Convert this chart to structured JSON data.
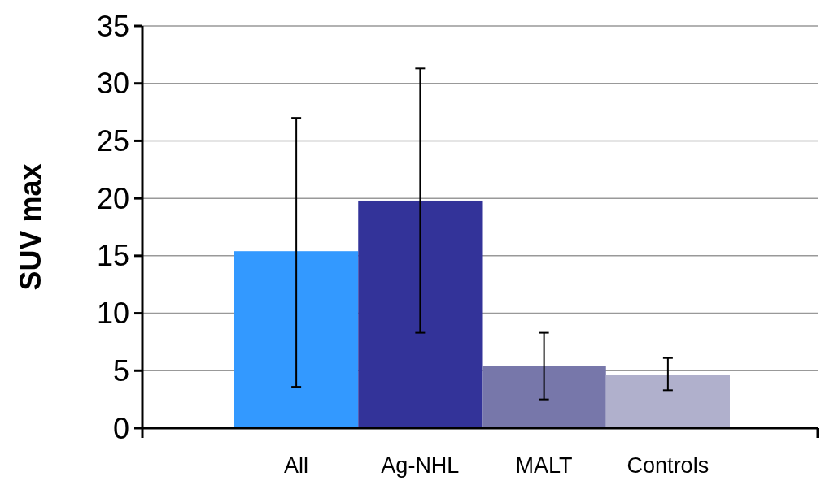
{
  "chart_data": {
    "type": "bar",
    "ylabel": "SUV max",
    "categories": [
      "All",
      "Ag-NHL",
      "MALT",
      "Controls"
    ],
    "values": [
      15.4,
      19.8,
      5.4,
      4.6
    ],
    "colors": [
      "#3399ff",
      "#333399",
      "#7777aa",
      "#b0b0cc"
    ],
    "errors": [
      [
        3.6,
        27.0
      ],
      [
        8.3,
        31.3
      ],
      [
        2.5,
        8.3
      ],
      [
        3.3,
        6.1
      ]
    ],
    "ylim": [
      0,
      35
    ],
    "yticks": [
      0,
      5,
      10,
      15,
      20,
      25,
      30,
      35
    ],
    "grid": "y"
  }
}
